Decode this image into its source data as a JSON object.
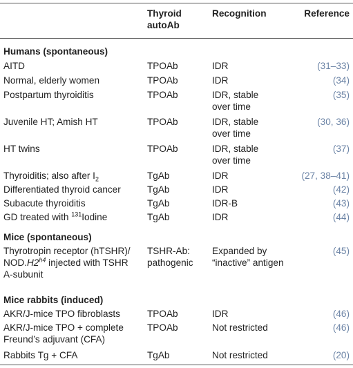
{
  "header": {
    "col1": "",
    "col2_line1": "Thyroid",
    "col2_line2": "autoAb",
    "col3": "Recognition",
    "col4": "Reference"
  },
  "sections": [
    {
      "title": "Humans (spontaneous)",
      "rows": [
        {
          "c1": "AITD",
          "c2": "TPOAb",
          "c3": "IDR",
          "c4": "(31–33)"
        },
        {
          "c1": "Normal, elderly women",
          "c2": "TPOAb",
          "c3": "IDR",
          "c4": "(34)"
        },
        {
          "c1": "Postpartum thyroiditis",
          "c2": "TPOAb",
          "c3": "IDR, stable",
          "c3b": "over time",
          "c4": "(35)"
        },
        {
          "c1": "Juvenile HT; Amish HT",
          "c2": "TPOAb",
          "c3": "IDR, stable",
          "c3b": "over time",
          "c4": "(30, 36)"
        },
        {
          "c1": "HT twins",
          "c2": "TPOAb",
          "c3": "IDR, stable",
          "c3b": "over time",
          "c4": "(37)"
        },
        {
          "c1": "Thyroiditis; also after I",
          "c1sub": "2",
          "c2": "TgAb",
          "c3": "IDR",
          "c4": "(27, 38–41)"
        },
        {
          "c1": "Differentiated thyroid cancer",
          "c2": "TgAb",
          "c3": "IDR",
          "c4": "(42)"
        },
        {
          "c1": "Subacute thyroiditis",
          "c2": "TgAb",
          "c3": "IDR-B",
          "c4": "(43)"
        },
        {
          "c1pre": "GD treated with ",
          "c1sup": "131",
          "c1": "Iodine",
          "c2": "TgAb",
          "c3": "IDR",
          "c4": "(44)"
        }
      ]
    },
    {
      "title": "Mice (spontaneous)",
      "rows": [
        {
          "c1a": "Thyrotropin receptor (hTSHR)/",
          "c1b_pre": "NOD.",
          "c1b_it": "H2",
          "c1b_sup": "h4",
          "c1b_post": " injected with TSHR",
          "c1c": "A-subunit",
          "c2a": "TSHR-Ab:",
          "c2b": "pathogenic",
          "c3a": "Expanded by",
          "c3b": "“inactive” antigen",
          "c4": "(45)"
        }
      ]
    },
    {
      "title": "Mice rabbits (induced)",
      "rows": [
        {
          "c1": "AKR/J-mice TPO fibroblasts",
          "c2": "TPOAb",
          "c3": "IDR",
          "c4": "(46)"
        },
        {
          "c1": "AKR/J-mice TPO + complete",
          "c1b": "Freund’s adjuvant (CFA)",
          "c2": "TPOAb",
          "c3": "Not restricted",
          "c4": "(46)"
        },
        {
          "c1": "Rabbits Tg + CFA",
          "c2": "TgAb",
          "c3": "Not restricted",
          "c4": "(20)"
        }
      ]
    }
  ]
}
